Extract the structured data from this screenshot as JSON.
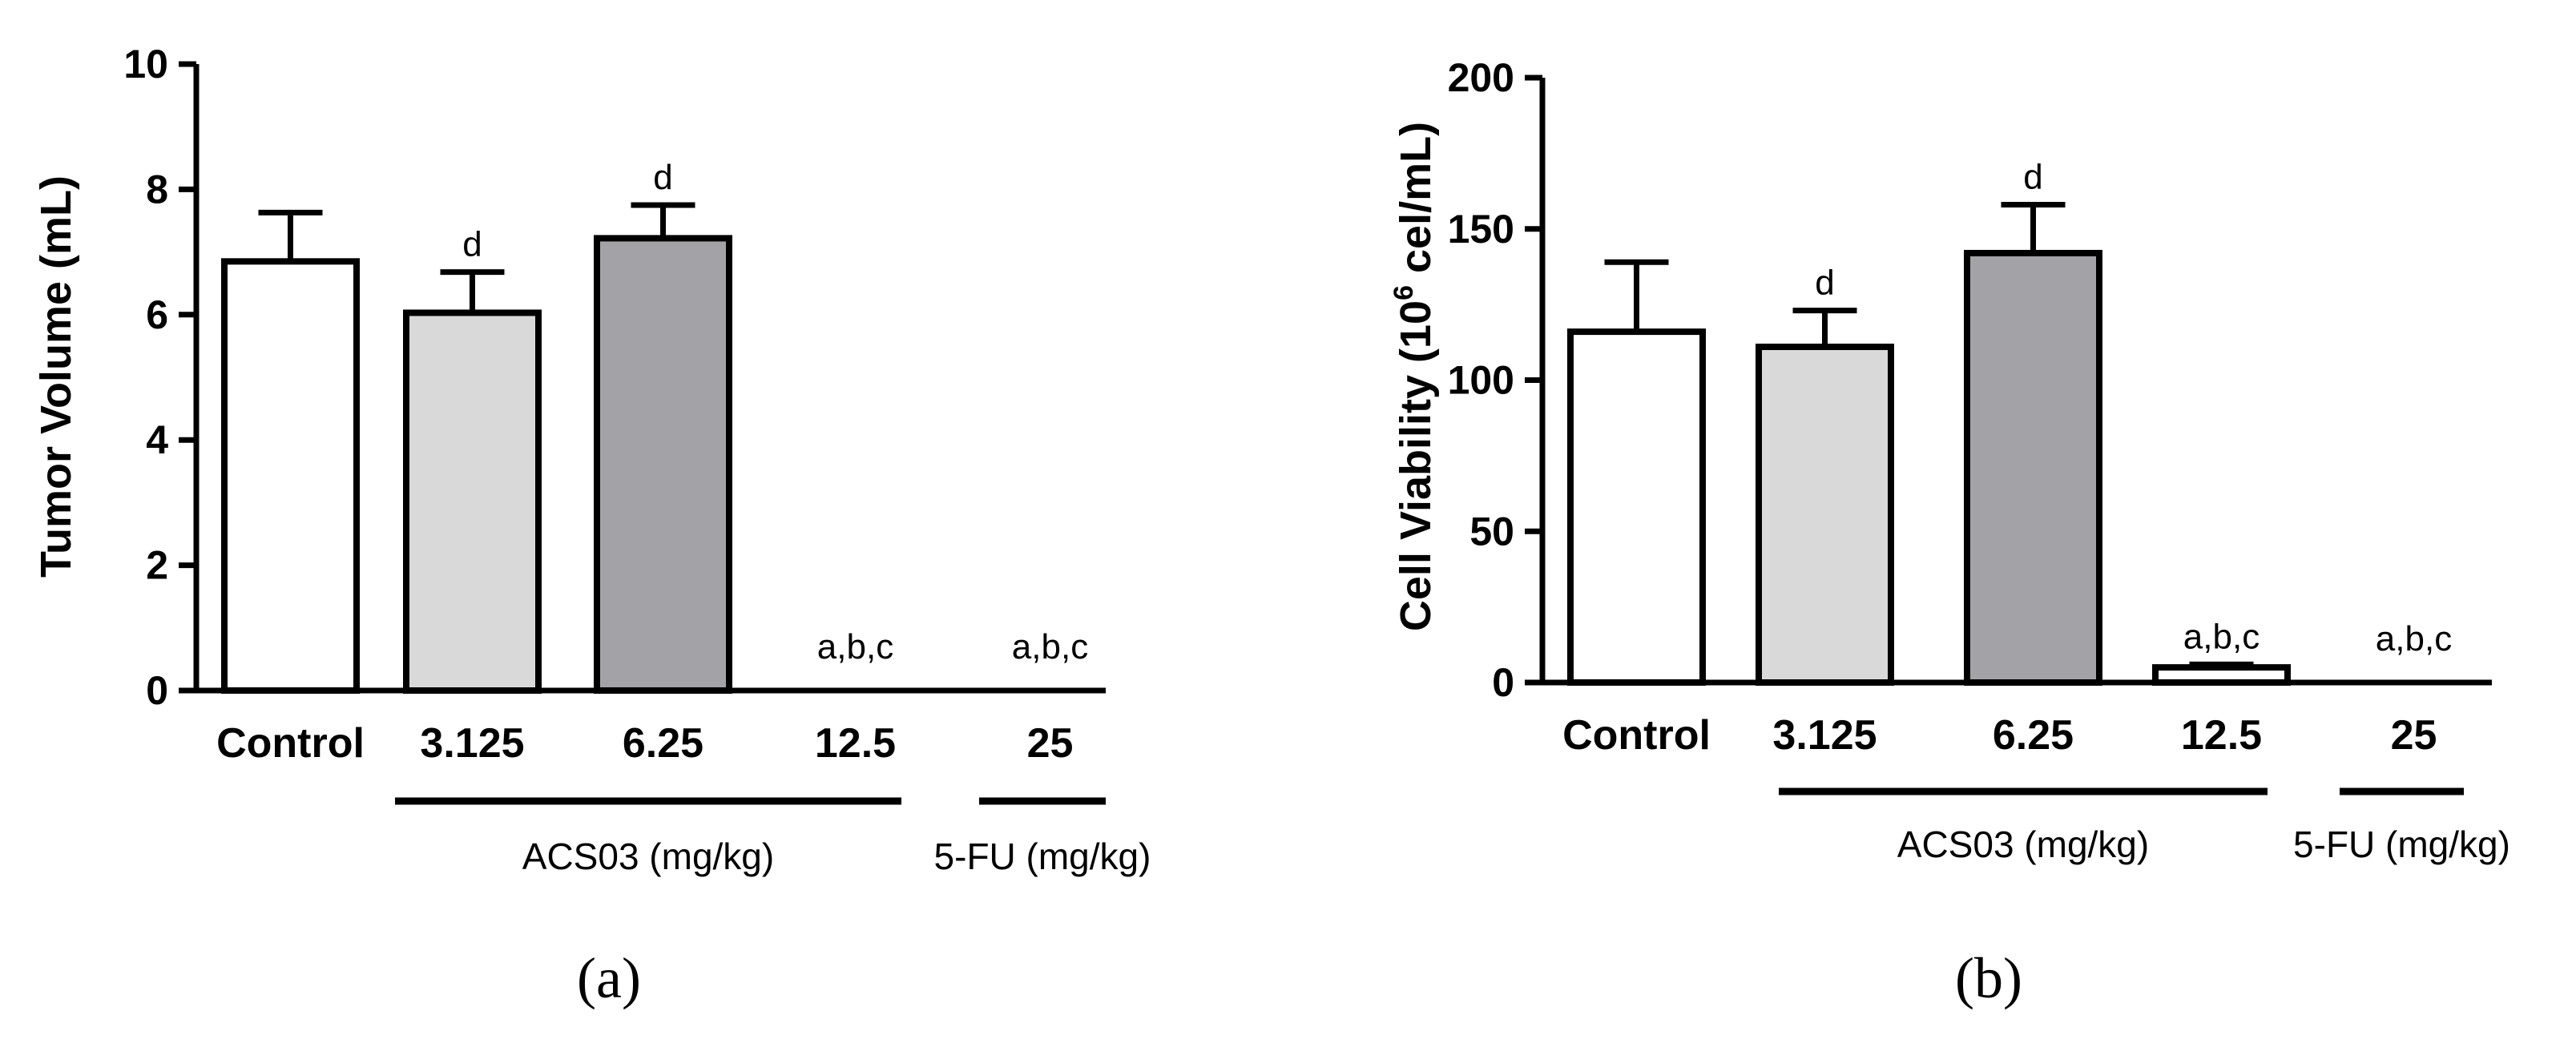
{
  "colors": {
    "control": "#ffffff",
    "dose_3_125": "#d9d9d9",
    "dose_6_25": "#a3a2a7",
    "dose_12_5": "#ffffff",
    "dose_25": "#ffffff",
    "stroke": "#000000"
  },
  "chart_data": [
    {
      "type": "bar",
      "panel_label": "(a)",
      "ylabel": "Tumor Volume (mL)",
      "ylim": [
        0,
        10
      ],
      "yticks": [
        "0",
        "2",
        "4",
        "6",
        "8",
        "10"
      ],
      "categories": [
        "Control",
        "3.125",
        "6.25",
        "12.5",
        "25"
      ],
      "values": [
        6.85,
        6.03,
        7.22,
        0,
        0
      ],
      "errors": [
        0.78,
        0.65,
        0.53,
        0,
        0
      ],
      "annotations": [
        "",
        "d",
        "d",
        "a,b,c",
        "a,b,c"
      ],
      "groups": [
        {
          "label": "ACS03 (mg/kg)",
          "from": 1,
          "to": 3
        },
        {
          "label": "5-FU (mg/kg)",
          "from": 4,
          "to": 4
        }
      ]
    },
    {
      "type": "bar",
      "panel_label": "(b)",
      "ylabel": "Cell Viability (10",
      "ylabel_sup": "6",
      "ylabel_tail": " cel/mL)",
      "ylim": [
        0,
        200
      ],
      "yticks": [
        "0",
        "50",
        "100",
        "150",
        "200"
      ],
      "categories": [
        "Control",
        "3.125",
        "6.25",
        "12.5",
        "25"
      ],
      "values": [
        116,
        111,
        142,
        5,
        0
      ],
      "errors": [
        23,
        12,
        16,
        1,
        0
      ],
      "annotations": [
        "",
        "d",
        "d",
        "a,b,c",
        "a,b,c"
      ],
      "groups": [
        {
          "label": "ACS03 (mg/kg)",
          "from": 1,
          "to": 3
        },
        {
          "label": "5-FU (mg/kg)",
          "from": 4,
          "to": 4
        }
      ]
    }
  ]
}
